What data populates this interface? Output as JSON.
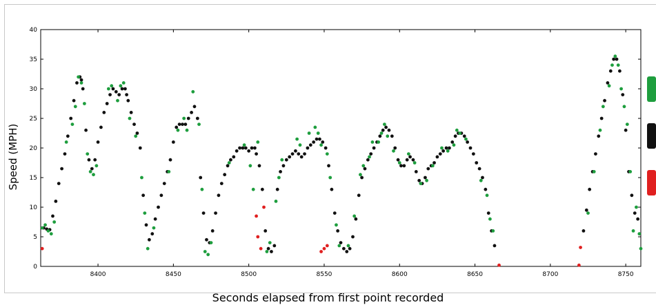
{
  "chart_data": {
    "type": "scatter",
    "title": "",
    "xlabel": "Seconds elapsed from first point recorded",
    "ylabel": "Speed (MPH)",
    "xlim": [
      8362,
      8760
    ],
    "ylim": [
      0,
      40
    ],
    "xticks": [
      8400,
      8450,
      8500,
      8550,
      8600,
      8650,
      8700,
      8750
    ],
    "yticks": [
      0,
      5,
      10,
      15,
      20,
      25,
      30,
      35,
      40
    ],
    "grid": false,
    "legend": "right, cut off (color swatches only)",
    "colors": {
      "green": "#1e9e3e",
      "black": "#111111",
      "red": "#e02020"
    },
    "series": [
      {
        "color": "black",
        "points": [
          [
            8364,
            6.5
          ],
          [
            8366,
            6.3
          ],
          [
            8368,
            6.2
          ],
          [
            8370,
            8.5
          ],
          [
            8372,
            11
          ],
          [
            8374,
            14
          ],
          [
            8376,
            16.5
          ],
          [
            8378,
            19
          ],
          [
            8380,
            22
          ],
          [
            8382,
            25
          ],
          [
            8384,
            28
          ],
          [
            8386,
            31
          ],
          [
            8388,
            32
          ],
          [
            8389,
            31.5
          ],
          [
            8390,
            30
          ],
          [
            8392,
            23
          ],
          [
            8394,
            18
          ],
          [
            8396,
            16.5
          ],
          [
            8398,
            18
          ],
          [
            8400,
            21
          ],
          [
            8402,
            23.5
          ],
          [
            8404,
            26
          ],
          [
            8406,
            27.5
          ],
          [
            8408,
            29
          ],
          [
            8410,
            30
          ],
          [
            8412,
            29.5
          ],
          [
            8414,
            29
          ],
          [
            8416,
            30
          ],
          [
            8418,
            30
          ],
          [
            8419,
            29
          ],
          [
            8420,
            28
          ],
          [
            8422,
            26
          ],
          [
            8424,
            24
          ],
          [
            8426,
            22.5
          ],
          [
            8428,
            20
          ],
          [
            8430,
            12
          ],
          [
            8432,
            7
          ],
          [
            8434,
            4.5
          ],
          [
            8436,
            5.5
          ],
          [
            8438,
            8
          ],
          [
            8440,
            10
          ],
          [
            8442,
            12
          ],
          [
            8444,
            14
          ],
          [
            8446,
            16
          ],
          [
            8448,
            18
          ],
          [
            8450,
            21
          ],
          [
            8452,
            23.5
          ],
          [
            8454,
            24
          ],
          [
            8456,
            24
          ],
          [
            8458,
            24
          ],
          [
            8460,
            25
          ],
          [
            8462,
            26
          ],
          [
            8464,
            27
          ],
          [
            8466,
            25
          ],
          [
            8468,
            15
          ],
          [
            8470,
            9
          ],
          [
            8472,
            4.5
          ],
          [
            8474,
            4
          ],
          [
            8476,
            6
          ],
          [
            8478,
            9
          ],
          [
            8480,
            12
          ],
          [
            8482,
            14
          ],
          [
            8484,
            15.5
          ],
          [
            8486,
            17
          ],
          [
            8488,
            18
          ],
          [
            8490,
            18.5
          ],
          [
            8492,
            19.5
          ],
          [
            8494,
            20
          ],
          [
            8496,
            20
          ],
          [
            8498,
            20
          ],
          [
            8500,
            19.5
          ],
          [
            8502,
            20
          ],
          [
            8504,
            20
          ],
          [
            8505,
            19
          ],
          [
            8507,
            17
          ],
          [
            8509,
            13
          ],
          [
            8511,
            6
          ],
          [
            8513,
            3
          ],
          [
            8515,
            2.5
          ],
          [
            8517,
            3.5
          ],
          [
            8519,
            13
          ],
          [
            8521,
            16
          ],
          [
            8523,
            17
          ],
          [
            8525,
            18
          ],
          [
            8527,
            18.5
          ],
          [
            8529,
            19
          ],
          [
            8531,
            19.5
          ],
          [
            8533,
            19
          ],
          [
            8535,
            18.5
          ],
          [
            8537,
            19
          ],
          [
            8539,
            20
          ],
          [
            8541,
            20.5
          ],
          [
            8543,
            21
          ],
          [
            8545,
            21.5
          ],
          [
            8547,
            21.5
          ],
          [
            8549,
            21
          ],
          [
            8551,
            20
          ],
          [
            8553,
            17
          ],
          [
            8555,
            13
          ],
          [
            8557,
            9
          ],
          [
            8559,
            6
          ],
          [
            8561,
            4
          ],
          [
            8563,
            3
          ],
          [
            8565,
            2.5
          ],
          [
            8567,
            3
          ],
          [
            8569,
            5
          ],
          [
            8571,
            8
          ],
          [
            8573,
            12
          ],
          [
            8575,
            15
          ],
          [
            8577,
            16.5
          ],
          [
            8579,
            18
          ],
          [
            8581,
            19
          ],
          [
            8583,
            20
          ],
          [
            8585,
            21
          ],
          [
            8587,
            22
          ],
          [
            8589,
            23
          ],
          [
            8591,
            23.5
          ],
          [
            8593,
            23
          ],
          [
            8595,
            22
          ],
          [
            8597,
            20
          ],
          [
            8599,
            18
          ],
          [
            8601,
            17
          ],
          [
            8603,
            17
          ],
          [
            8605,
            18
          ],
          [
            8607,
            18.5
          ],
          [
            8609,
            18
          ],
          [
            8611,
            16
          ],
          [
            8613,
            14.5
          ],
          [
            8615,
            14
          ],
          [
            8617,
            15
          ],
          [
            8619,
            16.5
          ],
          [
            8621,
            17
          ],
          [
            8623,
            17.5
          ],
          [
            8625,
            18.5
          ],
          [
            8627,
            19
          ],
          [
            8629,
            19.5
          ],
          [
            8631,
            20
          ],
          [
            8633,
            20
          ],
          [
            8635,
            21
          ],
          [
            8637,
            22
          ],
          [
            8639,
            22.5
          ],
          [
            8641,
            22.5
          ],
          [
            8643,
            22
          ],
          [
            8645,
            21
          ],
          [
            8647,
            20
          ],
          [
            8649,
            19
          ],
          [
            8651,
            17.5
          ],
          [
            8653,
            16.5
          ],
          [
            8655,
            15
          ],
          [
            8657,
            13
          ],
          [
            8659,
            9
          ],
          [
            8661,
            6
          ],
          [
            8663,
            3.5
          ],
          [
            8722,
            6
          ],
          [
            8724,
            9.5
          ],
          [
            8726,
            13
          ],
          [
            8728,
            16
          ],
          [
            8730,
            19
          ],
          [
            8732,
            22
          ],
          [
            8734,
            25
          ],
          [
            8736,
            28
          ],
          [
            8738,
            31
          ],
          [
            8740,
            33
          ],
          [
            8742,
            35
          ],
          [
            8744,
            35
          ],
          [
            8746,
            33
          ],
          [
            8748,
            29
          ],
          [
            8750,
            23
          ],
          [
            8752,
            16
          ],
          [
            8754,
            12
          ],
          [
            8756,
            9
          ],
          [
            8758,
            8
          ]
        ]
      },
      {
        "color": "green",
        "points": [
          [
            8363,
            6.5
          ],
          [
            8365,
            7
          ],
          [
            8367,
            6
          ],
          [
            8369,
            5.5
          ],
          [
            8371,
            7.5
          ],
          [
            8379,
            21
          ],
          [
            8383,
            24
          ],
          [
            8385,
            27
          ],
          [
            8387,
            32
          ],
          [
            8389,
            31
          ],
          [
            8391,
            27.5
          ],
          [
            8393,
            19
          ],
          [
            8395,
            16
          ],
          [
            8397,
            15.5
          ],
          [
            8399,
            17
          ],
          [
            8407,
            30
          ],
          [
            8409,
            30.5
          ],
          [
            8413,
            28
          ],
          [
            8415,
            30.5
          ],
          [
            8417,
            31
          ],
          [
            8421,
            25
          ],
          [
            8425,
            22
          ],
          [
            8429,
            15
          ],
          [
            8431,
            9
          ],
          [
            8433,
            3
          ],
          [
            8437,
            6.5
          ],
          [
            8447,
            16
          ],
          [
            8453,
            23
          ],
          [
            8457,
            25
          ],
          [
            8459,
            23
          ],
          [
            8463,
            29.5
          ],
          [
            8467,
            24
          ],
          [
            8469,
            13
          ],
          [
            8471,
            2.5
          ],
          [
            8473,
            2
          ],
          [
            8475,
            4
          ],
          [
            8487,
            17.5
          ],
          [
            8497,
            20.5
          ],
          [
            8501,
            17
          ],
          [
            8503,
            13
          ],
          [
            8506,
            21
          ],
          [
            8512,
            2.5
          ],
          [
            8514,
            4
          ],
          [
            8518,
            11
          ],
          [
            8520,
            15
          ],
          [
            8522,
            18
          ],
          [
            8532,
            21.5
          ],
          [
            8534,
            20.5
          ],
          [
            8540,
            22.5
          ],
          [
            8544,
            23.5
          ],
          [
            8546,
            22.5
          ],
          [
            8548,
            20.5
          ],
          [
            8552,
            19
          ],
          [
            8554,
            15
          ],
          [
            8558,
            7
          ],
          [
            8560,
            3.5
          ],
          [
            8566,
            3.5
          ],
          [
            8570,
            8.5
          ],
          [
            8574,
            15.5
          ],
          [
            8576,
            17
          ],
          [
            8580,
            18.5
          ],
          [
            8582,
            21
          ],
          [
            8586,
            21
          ],
          [
            8588,
            22.5
          ],
          [
            8590,
            24
          ],
          [
            8592,
            22
          ],
          [
            8596,
            19.5
          ],
          [
            8600,
            17.5
          ],
          [
            8606,
            19
          ],
          [
            8610,
            17.5
          ],
          [
            8614,
            14
          ],
          [
            8618,
            14.5
          ],
          [
            8622,
            17
          ],
          [
            8628,
            20
          ],
          [
            8632,
            19.5
          ],
          [
            8636,
            20.5
          ],
          [
            8638,
            23
          ],
          [
            8640,
            22.5
          ],
          [
            8644,
            21.5
          ],
          [
            8654,
            14.5
          ],
          [
            8658,
            12
          ],
          [
            8660,
            8
          ],
          [
            8662,
            6
          ],
          [
            8725,
            9
          ],
          [
            8729,
            16
          ],
          [
            8733,
            23
          ],
          [
            8735,
            27
          ],
          [
            8739,
            30.5
          ],
          [
            8741,
            34
          ],
          [
            8743,
            35.5
          ],
          [
            8745,
            34
          ],
          [
            8747,
            30
          ],
          [
            8749,
            27
          ],
          [
            8751,
            24
          ],
          [
            8753,
            16
          ],
          [
            8755,
            6
          ],
          [
            8757,
            10
          ],
          [
            8759,
            5.5
          ],
          [
            8760,
            3
          ]
        ]
      },
      {
        "color": "red",
        "points": [
          [
            8363,
            3
          ],
          [
            8505,
            8.5
          ],
          [
            8506,
            5
          ],
          [
            8508,
            3
          ],
          [
            8510,
            10
          ],
          [
            8548,
            2.5
          ],
          [
            8550,
            3
          ],
          [
            8552,
            3.5
          ],
          [
            8666,
            0.2
          ],
          [
            8720,
            3.2
          ],
          [
            8719,
            0.2
          ]
        ]
      }
    ]
  }
}
